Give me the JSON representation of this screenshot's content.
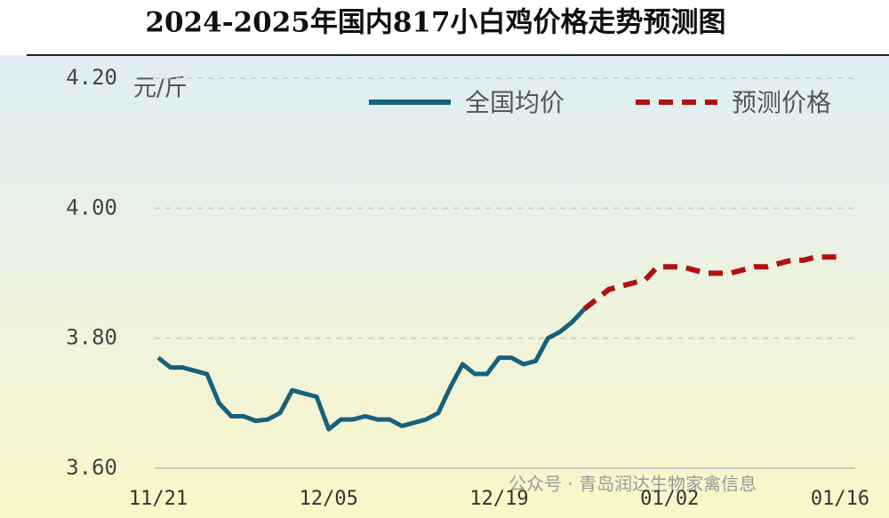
{
  "chart_data": {
    "type": "line",
    "title": "2024-2025年国内817小白鸡价格走势预测图",
    "y_unit": "元/斤",
    "watermark": "公众号 · 青岛润达生物家禽信息",
    "categories": [
      "11/21",
      null,
      null,
      null,
      null,
      null,
      null,
      null,
      null,
      null,
      null,
      null,
      null,
      null,
      "12/05",
      null,
      null,
      null,
      null,
      null,
      null,
      null,
      null,
      null,
      null,
      null,
      null,
      null,
      "12/19",
      null,
      null,
      null,
      null,
      null,
      null,
      null,
      null,
      null,
      null,
      null,
      null,
      null,
      "01/02",
      null,
      null,
      null,
      null,
      null,
      null,
      null,
      null,
      null,
      null,
      null,
      null,
      null,
      "01/16"
    ],
    "series": [
      {
        "name": "全国均价",
        "color": "#17617a",
        "dashed": false,
        "values": [
          3.77,
          3.755,
          3.755,
          3.75,
          3.745,
          3.7,
          3.68,
          3.68,
          3.673,
          3.675,
          3.685,
          3.72,
          3.715,
          3.71,
          3.66,
          3.675,
          3.675,
          3.68,
          3.675,
          3.675,
          3.665,
          3.67,
          3.675,
          3.685,
          3.725,
          3.76,
          3.745,
          3.745,
          3.77,
          3.77,
          3.76,
          3.765,
          3.8,
          3.81,
          3.825,
          3.845,
          null,
          null,
          null,
          null,
          null,
          null,
          null,
          null,
          null,
          null,
          null,
          null,
          null,
          null,
          null,
          null,
          null,
          null,
          null,
          null,
          null
        ]
      },
      {
        "name": "预测价格",
        "color": "#b01212",
        "dashed": true,
        "values": [
          null,
          null,
          null,
          null,
          null,
          null,
          null,
          null,
          null,
          null,
          null,
          null,
          null,
          null,
          null,
          null,
          null,
          null,
          null,
          null,
          null,
          null,
          null,
          null,
          null,
          null,
          null,
          null,
          null,
          null,
          null,
          null,
          null,
          null,
          null,
          3.845,
          3.86,
          3.875,
          3.88,
          3.885,
          3.89,
          3.91,
          3.91,
          3.91,
          3.905,
          3.9,
          3.9,
          3.9,
          3.905,
          3.91,
          3.91,
          3.915,
          3.92,
          3.92,
          3.925,
          3.925,
          3.925
        ]
      }
    ],
    "ylim": [
      3.6,
      4.2
    ],
    "yticks": [
      {
        "value": 3.6,
        "label": "3.60"
      },
      {
        "value": 3.8,
        "label": "3.80"
      },
      {
        "value": 4.0,
        "label": "4.00"
      },
      {
        "value": 4.2,
        "label": "4.20"
      }
    ],
    "grid": true
  }
}
